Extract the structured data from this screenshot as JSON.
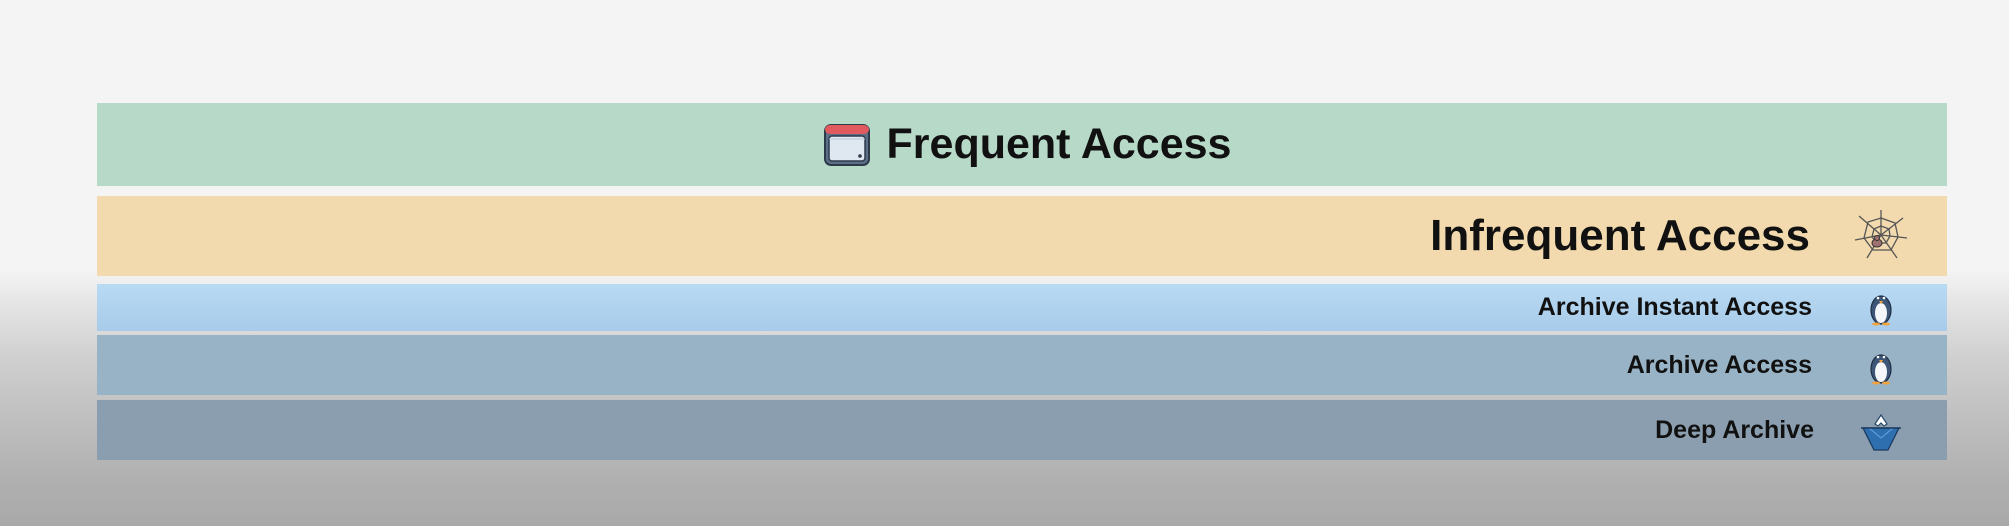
{
  "tiers": [
    {
      "label": "Frequent Access",
      "icon": "window-icon",
      "color": "#b6d9c8"
    },
    {
      "label": "Infrequent Access",
      "icon": "spider-web-icon",
      "color": "#f2daae"
    },
    {
      "label": "Archive Instant Access",
      "icon": "penguin-icon",
      "color": "#b9daf3"
    },
    {
      "label": "Archive Access",
      "icon": "penguin-icon",
      "color": "#98b3c5"
    },
    {
      "label": "Deep Archive",
      "icon": "iceberg-icon",
      "color": "#8a9eaf"
    }
  ]
}
